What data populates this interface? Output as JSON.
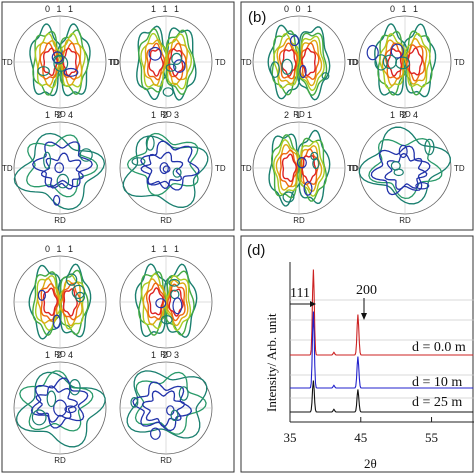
{
  "panels": {
    "a": {
      "letter": "",
      "poles": [
        {
          "hkl": "0 1 1",
          "left": "TD",
          "right": "TD",
          "bottom": "RD"
        },
        {
          "hkl": "1 1 1",
          "left": "TD",
          "right": "TD",
          "bottom": "RD"
        },
        {
          "hkl": "1 2 4",
          "left": "TD",
          "right": "",
          "bottom": "RD"
        },
        {
          "hkl": "1 2 3",
          "left": "",
          "right": "TD",
          "bottom": "RD"
        }
      ]
    },
    "b": {
      "letter": "(b)",
      "poles": [
        {
          "hkl": "0 0 1",
          "left": "TD",
          "right": "TD",
          "bottom": "RD"
        },
        {
          "hkl": "0 1 1",
          "left": "TD",
          "right": "TD",
          "bottom": "RD"
        },
        {
          "hkl": "2 1 1",
          "left": "TD",
          "right": "TD",
          "bottom": "RD"
        },
        {
          "hkl": "1 2 4",
          "left": "TD",
          "right": "TD",
          "bottom": "RD"
        }
      ]
    },
    "c": {
      "letter": "",
      "poles": [
        {
          "hkl": "0 1 1",
          "left": "",
          "right": "",
          "bottom": "RD"
        },
        {
          "hkl": "1 1 1",
          "left": "",
          "right": "",
          "bottom": "RD"
        },
        {
          "hkl": "1 2 4",
          "left": "",
          "right": "",
          "bottom": "RD"
        },
        {
          "hkl": "1 2 3",
          "left": "",
          "right": "",
          "bottom": "RD"
        }
      ]
    }
  },
  "xrd": {
    "letter": "(d)",
    "ylabel": "Intensity/ Arb. unit",
    "xlabel": "2θ",
    "xticks": [
      "35",
      "45",
      "55"
    ],
    "peak_labels": [
      "111",
      "200"
    ],
    "traces": [
      {
        "label": "d = 0.0 m",
        "color": "#cc2222"
      },
      {
        "label": "d = 10 m",
        "color": "#2222cc"
      },
      {
        "label": "d = 25 m",
        "color": "#111111"
      }
    ]
  },
  "chart_data": {
    "type": "line",
    "title": "",
    "xlabel": "2θ",
    "ylabel": "Intensity/ Arb. unit",
    "xlim": [
      35,
      61
    ],
    "x_ticks": [
      35,
      45,
      55
    ],
    "peaks_2theta": [
      38.3,
      44.6
    ],
    "series": [
      {
        "name": "d = 0.0 m",
        "peak_111": 0.95,
        "peak_200": 0.45
      },
      {
        "name": "d = 10 m",
        "peak_111": 0.85,
        "peak_200": 0.35
      },
      {
        "name": "d = 25 m",
        "peak_111": 0.35,
        "peak_200": 0.25
      }
    ]
  }
}
